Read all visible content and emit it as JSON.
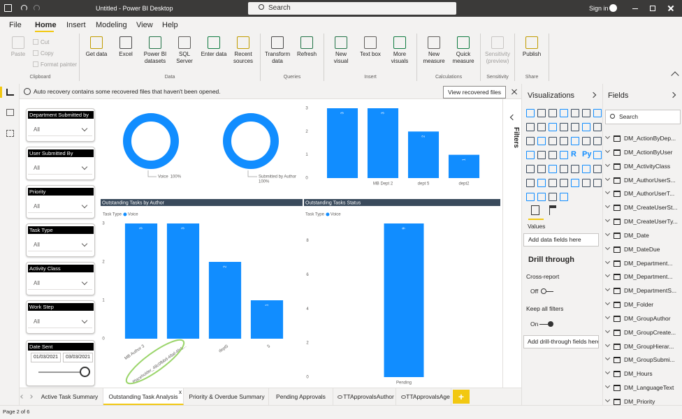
{
  "title_bar": {
    "title": "Untitled - Power BI Desktop",
    "search": "Search",
    "sign_in": "Sign in"
  },
  "menu": {
    "tabs": [
      "File",
      "Home",
      "Insert",
      "Modeling",
      "View",
      "Help"
    ]
  },
  "ribbon": {
    "groups": [
      {
        "name": "Clipboard",
        "items": [
          "Paste",
          "Cut",
          "Copy",
          "Format painter"
        ]
      },
      {
        "name": "Data",
        "items": [
          "Get data",
          "Excel",
          "Power BI datasets",
          "SQL Server",
          "Enter data",
          "Recent sources"
        ]
      },
      {
        "name": "Queries",
        "items": [
          "Transform data",
          "Refresh"
        ]
      },
      {
        "name": "Insert",
        "items": [
          "New visual",
          "Text box",
          "More visuals"
        ]
      },
      {
        "name": "Calculations",
        "items": [
          "New measure",
          "Quick measure"
        ]
      },
      {
        "name": "Sensitivity",
        "items": [
          "Sensitivity (preview)"
        ]
      },
      {
        "name": "Share",
        "items": [
          "Publish"
        ]
      }
    ]
  },
  "notification": {
    "text": "Auto recovery contains some recovered files that haven't been opened.",
    "button": "View recovered files"
  },
  "slicers": [
    {
      "title": "Department Submitted by",
      "value": "All"
    },
    {
      "title": "User Submitted By",
      "value": "All"
    },
    {
      "title": "Priority",
      "value": "All"
    },
    {
      "title": "Task Type",
      "value": "All"
    },
    {
      "title": "Activity Class",
      "value": "All"
    },
    {
      "title": "Work Step",
      "value": "All"
    },
    {
      "title": "Date Sent",
      "from": "01/03/2021",
      "to": "03/03/2021"
    }
  ],
  "chart_data": [
    {
      "type": "donut",
      "categories": [
        "Voice"
      ],
      "values": [
        100
      ],
      "value_labels": [
        "100%"
      ],
      "color": "#118dff"
    },
    {
      "type": "donut",
      "categories": [
        "Submitted by Author"
      ],
      "values": [
        100
      ],
      "value_labels": [
        "100%"
      ],
      "color": "#118dff"
    },
    {
      "type": "bar",
      "categories": [
        null,
        "MB Dept 2",
        "dept 5",
        "dept2"
      ],
      "values": [
        3,
        3,
        2,
        1
      ],
      "color": "#118dff",
      "ylim": [
        0,
        3
      ],
      "yticks": [
        0,
        1,
        2,
        3
      ],
      "grid": false
    },
    {
      "type": "bar",
      "title": "Outstanding Tasks by Author",
      "legend_title": "Task Type",
      "categories": [
        "MB Author 3",
        "Placeholder_48c0fbbd-48af-4feb...",
        "dept5",
        "5"
      ],
      "series": [
        {
          "name": "Voice",
          "color": "#118dff",
          "values": [
            3,
            3,
            2,
            1
          ]
        }
      ],
      "ylim": [
        0,
        3
      ],
      "yticks": [
        0,
        1,
        2,
        3
      ],
      "grid": false
    },
    {
      "type": "bar",
      "title": "Outstanding Tasks Status",
      "legend_title": "Task Type",
      "categories": [
        "Pending"
      ],
      "series": [
        {
          "name": "Voice",
          "color": "#118dff",
          "values": [
            9
          ]
        }
      ],
      "ylim": [
        0,
        9
      ],
      "yticks": [
        0,
        2,
        4,
        6,
        8
      ],
      "grid": false
    }
  ],
  "filters": {
    "label": "Filters"
  },
  "visualizations": {
    "title": "Visualizations",
    "icon_labels": [
      "R",
      "Py"
    ],
    "values_label": "Values",
    "values_placeholder": "Add data fields here",
    "drill_title": "Drill through",
    "cross_report": "Cross-report",
    "cross_report_state": "Off",
    "keep_filters": "Keep all filters",
    "keep_filters_state": "On",
    "drill_placeholder": "Add drill-through fields here"
  },
  "fields": {
    "title": "Fields",
    "search": "Search",
    "items": [
      "DM_ActionByDep...",
      "DM_ActionByUser",
      "DM_ActivityClass",
      "DM_AuthorUserS...",
      "DM_AuthorUserT...",
      "DM_CreateUserSt...",
      "DM_CreateUserTy...",
      "DM_Date",
      "DM_DateDue",
      "DM_Department...",
      "DM_Department...",
      "DM_DepartmentS...",
      "DM_Folder",
      "DM_GroupAuthor",
      "DM_GroupCreate...",
      "DM_GroupHierar...",
      "DM_GroupSubmi...",
      "DM_Hours",
      "DM_LanguageText",
      "DM_Priority"
    ]
  },
  "page_tabs": {
    "tabs": [
      "Active Task Summary",
      "Outstanding Task Analysis",
      "Priority & Overdue Summary",
      "Pending Approvals",
      "TTApprovalsAuthor",
      "TTApprovalsAge"
    ],
    "close": "x",
    "add": "+"
  },
  "status": {
    "page": "Page 2 of 6"
  }
}
